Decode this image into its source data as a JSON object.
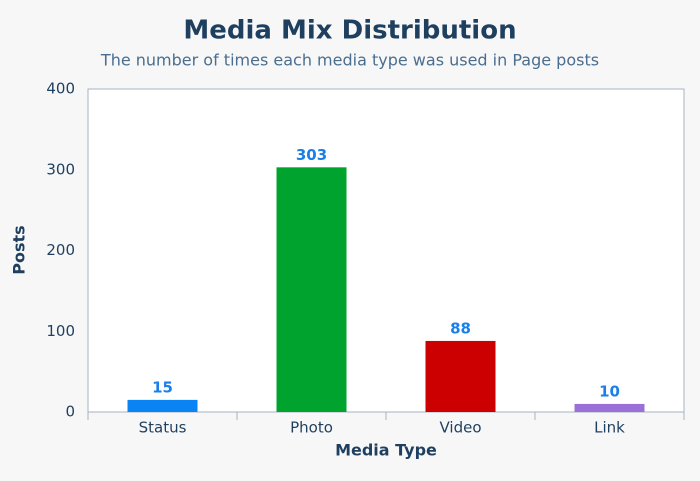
{
  "chart_data": {
    "type": "bar",
    "title": "Media Mix Distribution",
    "subtitle": "The number of times each media type was used in Page posts",
    "x_label": "Media Type",
    "y_label": "Posts",
    "categories": [
      "Status",
      "Photo",
      "Video",
      "Link"
    ],
    "values": [
      15,
      303,
      88,
      10
    ],
    "colors": [
      "#0a84f5",
      "#00a32e",
      "#cc0000",
      "#9b6fd8"
    ],
    "ylim": [
      0,
      400
    ],
    "yticks": [
      0,
      100,
      200,
      300,
      400
    ],
    "grid": false
  }
}
